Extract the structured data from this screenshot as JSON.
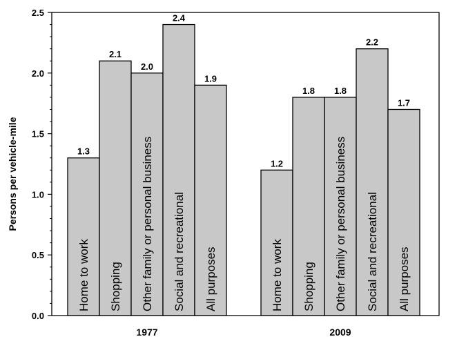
{
  "chart_data": {
    "type": "bar",
    "ylabel": "Persons per vehicle-mile",
    "ylim": [
      0,
      2.5
    ],
    "yticks": [
      "0.0",
      "0.5",
      "1.0",
      "1.5",
      "2.0",
      "2.5"
    ],
    "bar_color": "#c8c8c8",
    "groups": [
      {
        "label": "1977",
        "bars": [
          {
            "category": "Home to work",
            "value": 1.3,
            "label": "1.3"
          },
          {
            "category": "Shopping",
            "value": 2.1,
            "label": "2.1"
          },
          {
            "category": "Other family or personal business",
            "value": 2.0,
            "label": "2.0"
          },
          {
            "category": "Social and recreational",
            "value": 2.4,
            "label": "2.4"
          },
          {
            "category": "All purposes",
            "value": 1.9,
            "label": "1.9"
          }
        ]
      },
      {
        "label": "2009",
        "bars": [
          {
            "category": "Home to work",
            "value": 1.2,
            "label": "1.2"
          },
          {
            "category": "Shopping",
            "value": 1.8,
            "label": "1.8"
          },
          {
            "category": "Other family or personal business",
            "value": 1.8,
            "label": "1.8"
          },
          {
            "category": "Social and recreational",
            "value": 2.2,
            "label": "2.2"
          },
          {
            "category": "All purposes",
            "value": 1.7,
            "label": "1.7"
          }
        ]
      }
    ]
  }
}
